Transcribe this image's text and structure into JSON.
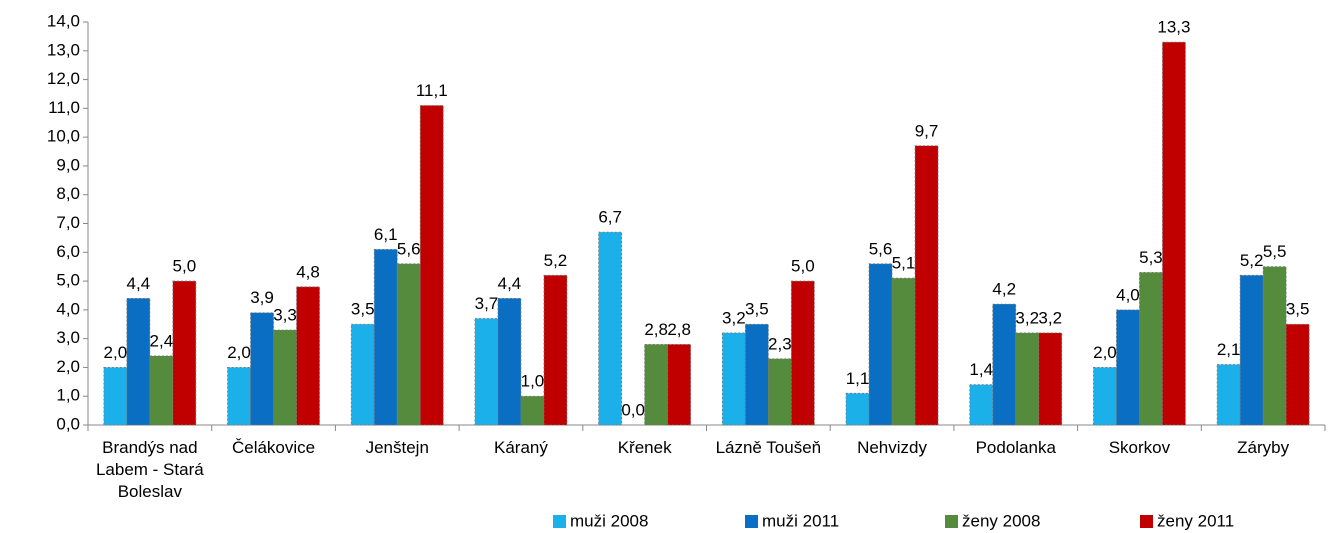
{
  "chart_data": {
    "type": "bar",
    "categories": [
      "Brandýs nad Labem - Stará Boleslav",
      "Čelákovice",
      "Jenštejn",
      "Káraný",
      "Křenek",
      "Lázně Toušeň",
      "Nehvizdy",
      "Podolanka",
      "Skorkov",
      "Záryby"
    ],
    "series": [
      {
        "name": "muži 2008",
        "color": "#1cb0ea",
        "values": [
          2.0,
          2.0,
          3.5,
          3.7,
          6.7,
          3.2,
          1.1,
          1.4,
          2.0,
          2.1
        ],
        "value_labels": [
          "2,0",
          "2,0",
          "3,5",
          "3,7",
          "6,7",
          "3,2",
          "1,1",
          "1,4",
          "2,0",
          "2,1"
        ]
      },
      {
        "name": "muži 2011",
        "color": "#0a6fc2",
        "values": [
          4.4,
          3.9,
          6.1,
          4.4,
          0.0,
          3.5,
          5.6,
          4.2,
          4.0,
          5.2
        ],
        "value_labels": [
          "4,4",
          "3,9",
          "6,1",
          "4,4",
          "0,0",
          "3,5",
          "5,6",
          "4,2",
          "4,0",
          "5,2"
        ]
      },
      {
        "name": "ženy 2008",
        "color": "#548b3c",
        "values": [
          2.4,
          3.3,
          5.6,
          1.0,
          2.8,
          2.3,
          5.1,
          3.2,
          5.3,
          5.5
        ],
        "value_labels": [
          "2,4",
          "3,3",
          "5,6",
          "1,0",
          "2,8",
          "2,3",
          "5,1",
          "3,2",
          "5,3",
          "5,5"
        ]
      },
      {
        "name": "ženy 2011",
        "color": "#c00000",
        "values": [
          5.0,
          4.8,
          11.1,
          5.2,
          2.8,
          5.0,
          9.7,
          3.2,
          13.3,
          3.5
        ],
        "value_labels": [
          "5,0",
          "4,8",
          "11,1",
          "5,2",
          "2,8",
          "5,0",
          "9,7",
          "3,2",
          "13,3",
          "3,5"
        ]
      }
    ],
    "ylim": [
      0,
      14
    ],
    "yticks": [
      {
        "value": 0,
        "label": "0,0"
      },
      {
        "value": 1,
        "label": "1,0"
      },
      {
        "value": 2,
        "label": "2,0"
      },
      {
        "value": 3,
        "label": "3,0"
      },
      {
        "value": 4,
        "label": "4,0"
      },
      {
        "value": 5,
        "label": "5,0"
      },
      {
        "value": 6,
        "label": "6,0"
      },
      {
        "value": 7,
        "label": "7,0"
      },
      {
        "value": 8,
        "label": "8,0"
      },
      {
        "value": 9,
        "label": "9,0"
      },
      {
        "value": 10,
        "label": "10,0"
      },
      {
        "value": 11,
        "label": "11,0"
      },
      {
        "value": 12,
        "label": "12,0"
      },
      {
        "value": 13,
        "label": "13,0"
      },
      {
        "value": 14,
        "label": "14,0"
      }
    ],
    "grid": false,
    "legend": "bottom"
  }
}
